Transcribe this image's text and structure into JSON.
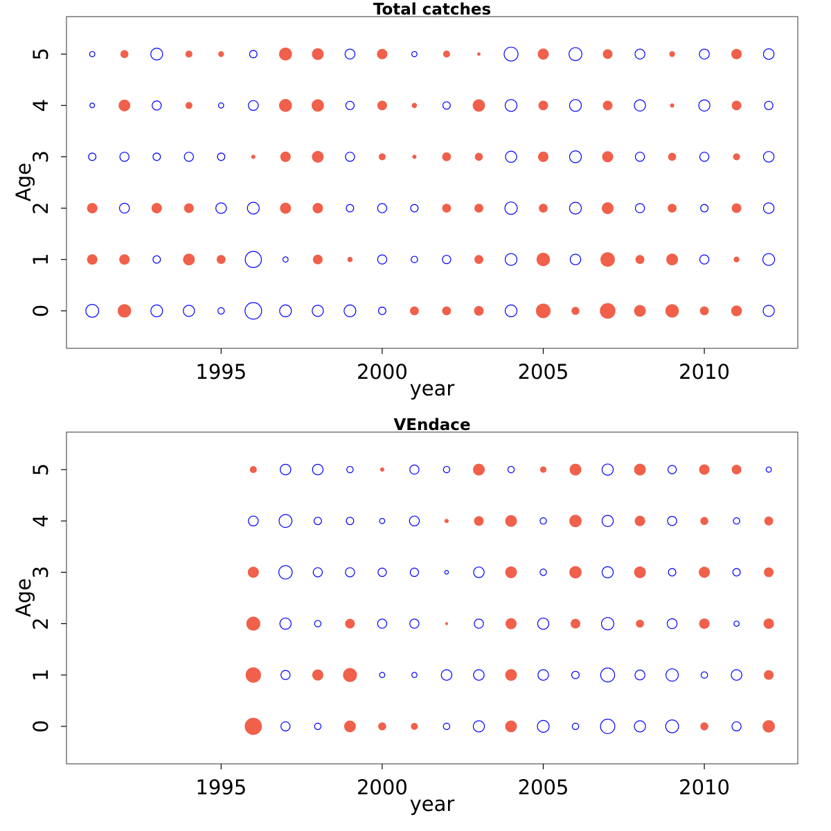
{
  "colors": {
    "positive": "#F0604A",
    "negative": "#0000FF"
  },
  "chart_data": [
    {
      "type": "scatter",
      "subtype": "bubble",
      "title": "Total catches",
      "xlabel": "year",
      "ylabel": "Age",
      "xlim": [
        1990.2,
        2012.9
      ],
      "ylim": [
        -0.73,
        5.73
      ],
      "xticks": [
        1995,
        2000,
        2005,
        2010
      ],
      "yticks": [
        0,
        1,
        2,
        3,
        4,
        5
      ],
      "years": [
        1991,
        1992,
        1993,
        1994,
        1995,
        1996,
        1997,
        1998,
        1999,
        2000,
        2001,
        2002,
        2003,
        2004,
        2005,
        2006,
        2007,
        2008,
        2009,
        2010,
        2011,
        2012
      ],
      "ages": [
        0,
        1,
        2,
        3,
        4,
        5
      ],
      "note": "value per [age][year]; positive = filled red, negative = open blue; radius proportional to |value|",
      "values": [
        [
          -0.6,
          0.6,
          -0.5,
          -0.45,
          -0.15,
          -1.0,
          -0.5,
          -0.45,
          -0.5,
          -0.2,
          0.25,
          0.25,
          0.3,
          -0.5,
          0.72,
          0.2,
          0.82,
          0.45,
          0.6,
          0.25,
          0.38,
          -0.45
        ],
        [
          0.35,
          0.35,
          -0.2,
          0.45,
          0.25,
          -0.95,
          -0.1,
          0.3,
          0.08,
          -0.3,
          -0.15,
          -0.25,
          0.25,
          -0.5,
          0.6,
          -0.4,
          0.7,
          0.25,
          0.45,
          -0.3,
          0.1,
          -0.5
        ],
        [
          0.35,
          -0.35,
          0.35,
          0.3,
          -0.4,
          -0.5,
          0.4,
          0.35,
          -0.2,
          -0.3,
          -0.2,
          0.25,
          0.25,
          -0.55,
          0.25,
          -0.5,
          0.45,
          -0.3,
          0.25,
          -0.2,
          0.3,
          -0.4
        ],
        [
          -0.2,
          -0.3,
          -0.2,
          -0.3,
          -0.2,
          0.05,
          0.35,
          0.45,
          -0.3,
          0.15,
          0.05,
          0.25,
          0.2,
          -0.45,
          0.35,
          -0.5,
          0.4,
          -0.3,
          0.2,
          -0.3,
          0.15,
          -0.4
        ],
        [
          -0.08,
          0.45,
          -0.3,
          0.15,
          -0.1,
          -0.35,
          0.55,
          0.5,
          -0.25,
          0.3,
          0.08,
          -0.2,
          0.5,
          -0.5,
          0.3,
          -0.5,
          0.3,
          -0.45,
          0.05,
          -0.45,
          0.3,
          -0.25
        ],
        [
          -0.1,
          0.2,
          -0.5,
          0.15,
          0.1,
          -0.2,
          0.55,
          0.45,
          -0.35,
          0.35,
          -0.1,
          0.15,
          0.03,
          -0.7,
          0.4,
          -0.6,
          0.3,
          -0.35,
          0.1,
          -0.35,
          0.35,
          -0.4
        ]
      ]
    },
    {
      "type": "scatter",
      "subtype": "bubble",
      "title": "VEndace",
      "xlabel": "year",
      "ylabel": "Age",
      "xlim": [
        1990.2,
        2012.9
      ],
      "ylim": [
        -0.73,
        5.73
      ],
      "xticks": [
        1995,
        2000,
        2005,
        2010
      ],
      "yticks": [
        0,
        1,
        2,
        3,
        4,
        5
      ],
      "years": [
        1996,
        1997,
        1998,
        1999,
        2000,
        2001,
        2002,
        2003,
        2004,
        2005,
        2006,
        2007,
        2008,
        2009,
        2010,
        2011,
        2012
      ],
      "ages": [
        0,
        1,
        2,
        3,
        4,
        5
      ],
      "note": "value per [age][year]; positive = filled red, negative = open blue; radius proportional to |value|",
      "values": [
        [
          1.0,
          -0.3,
          -0.15,
          0.45,
          0.2,
          0.15,
          -0.15,
          -0.45,
          0.45,
          -0.5,
          -0.15,
          -0.75,
          -0.45,
          -0.6,
          0.2,
          -0.3,
          0.5
        ],
        [
          0.8,
          -0.3,
          0.4,
          0.65,
          -0.1,
          -0.1,
          -0.4,
          -0.4,
          0.45,
          -0.4,
          -0.2,
          -0.7,
          -0.35,
          -0.55,
          -0.15,
          -0.4,
          0.3
        ],
        [
          0.65,
          -0.45,
          -0.15,
          0.3,
          -0.3,
          -0.3,
          0.02,
          -0.3,
          0.4,
          -0.45,
          0.3,
          -0.55,
          0.2,
          -0.35,
          0.35,
          -0.1,
          0.35
        ],
        [
          0.4,
          -0.65,
          -0.3,
          -0.3,
          -0.25,
          -0.25,
          -0.05,
          -0.4,
          0.45,
          -0.15,
          0.5,
          -0.45,
          0.45,
          -0.2,
          0.4,
          -0.2,
          0.3
        ],
        [
          -0.35,
          -0.6,
          -0.2,
          -0.2,
          -0.1,
          -0.35,
          0.05,
          0.3,
          0.45,
          -0.15,
          0.5,
          -0.45,
          0.35,
          -0.3,
          0.2,
          -0.15,
          0.25
        ],
        [
          0.15,
          -0.4,
          -0.4,
          -0.15,
          0.05,
          -0.3,
          -0.15,
          0.45,
          -0.15,
          0.12,
          0.45,
          -0.45,
          0.45,
          -0.25,
          0.35,
          0.3,
          -0.1
        ]
      ]
    }
  ]
}
